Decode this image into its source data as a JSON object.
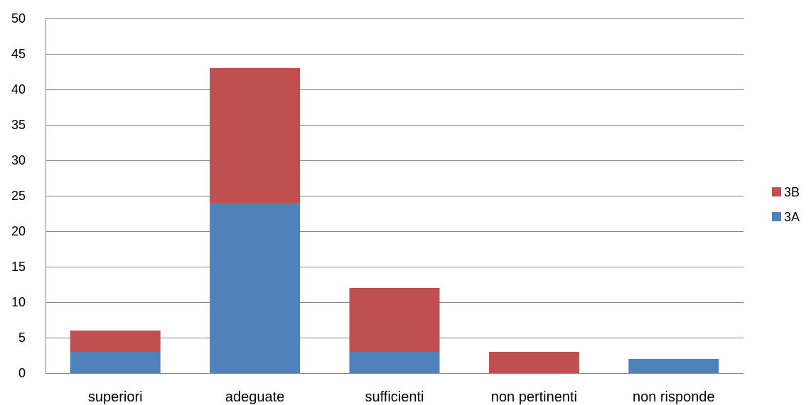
{
  "chart_data": {
    "type": "bar",
    "stacked": true,
    "categories": [
      "superiori",
      "adeguate",
      "sufficienti",
      "non pertinenti",
      "non risponde"
    ],
    "series": [
      {
        "name": "3A",
        "color": "#4F81BD",
        "values": [
          3,
          24,
          3,
          0,
          2
        ]
      },
      {
        "name": "3B",
        "color": "#C0504D",
        "values": [
          3,
          19,
          9,
          3,
          0
        ]
      }
    ],
    "y_ticks": [
      "0",
      "5",
      "10",
      "15",
      "20",
      "25",
      "30",
      "35",
      "40",
      "45",
      "50"
    ],
    "ylim": [
      0,
      50
    ],
    "grid": true,
    "gridline_color": "#868686",
    "legend": {
      "position": "right",
      "order": [
        "3B",
        "3A"
      ]
    }
  }
}
